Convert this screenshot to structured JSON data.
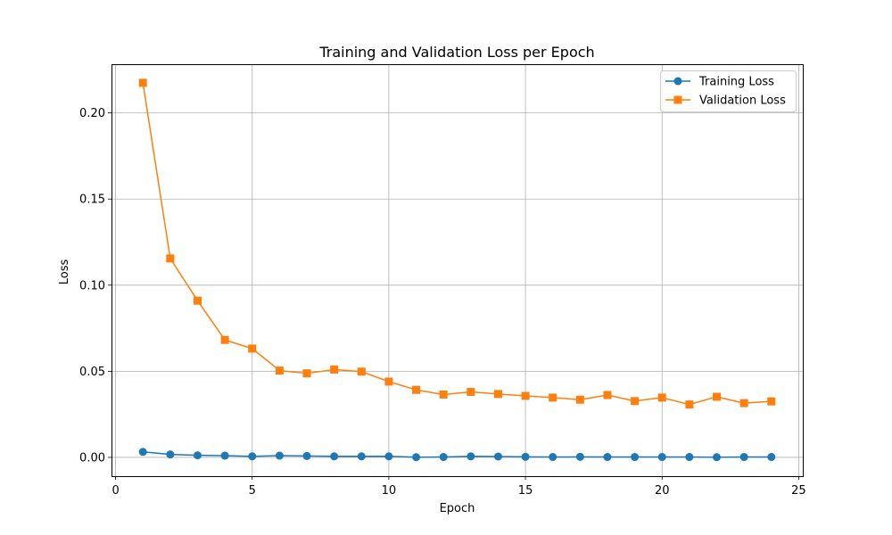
{
  "chart_data": {
    "type": "line",
    "title": "Training and Validation Loss per Epoch",
    "xlabel": "Epoch",
    "ylabel": "Loss",
    "xlim": [
      -0.15,
      25.15
    ],
    "ylim": [
      -0.0109,
      0.2283
    ],
    "xticks": [
      0,
      5,
      10,
      15,
      20,
      25
    ],
    "yticks": [
      0.0,
      0.05,
      0.1,
      0.15,
      0.2
    ],
    "xtick_labels": [
      "0",
      "5",
      "10",
      "15",
      "20",
      "25"
    ],
    "ytick_labels": [
      "0.00",
      "0.05",
      "0.10",
      "0.15",
      "0.20"
    ],
    "grid": true,
    "legend_position": "top-right",
    "x": [
      1,
      2,
      3,
      4,
      5,
      6,
      7,
      8,
      9,
      10,
      11,
      12,
      13,
      14,
      15,
      16,
      17,
      18,
      19,
      20,
      21,
      22,
      23,
      24
    ],
    "series": [
      {
        "name": "Training Loss",
        "color": "#1f77b4",
        "marker": "circle",
        "values": [
          0.0032,
          0.0017,
          0.0012,
          0.001,
          0.0006,
          0.001,
          0.0008,
          0.0006,
          0.0006,
          0.0006,
          0.0001,
          0.0002,
          0.0006,
          0.0005,
          0.0003,
          0.0002,
          0.0003,
          0.0002,
          0.0002,
          0.0002,
          0.0002,
          0.0001,
          0.0002,
          0.0002
        ]
      },
      {
        "name": "Validation Loss",
        "color": "#ff7f0e",
        "marker": "square",
        "values": [
          0.2175,
          0.1155,
          0.091,
          0.0682,
          0.0632,
          0.0504,
          0.0488,
          0.051,
          0.0498,
          0.044,
          0.0392,
          0.0365,
          0.038,
          0.0368,
          0.0357,
          0.0347,
          0.0335,
          0.0362,
          0.0327,
          0.0347,
          0.0307,
          0.0352,
          0.0315,
          0.0325
        ]
      }
    ]
  }
}
